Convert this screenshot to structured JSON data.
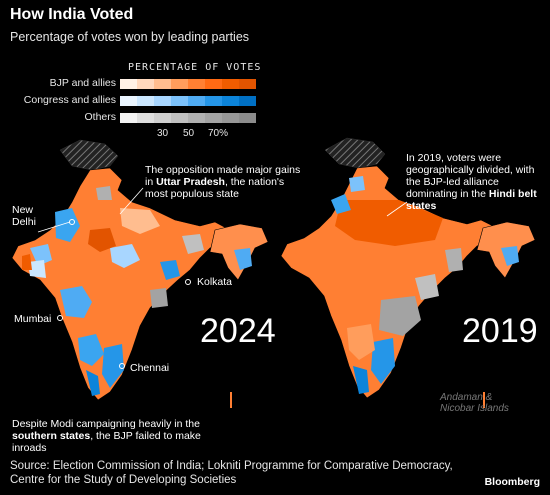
{
  "title": "How India Voted",
  "subtitle": "Percentage of votes won by leading parties",
  "legend": {
    "header": "PERCENTAGE OF VOTES",
    "rows": [
      {
        "label": "BJP and allies",
        "colors": [
          "#fff1e6",
          "#ffd8bd",
          "#ffbd8f",
          "#ff9d5c",
          "#ff8033",
          "#ff6a14",
          "#f05c00",
          "#e25400"
        ]
      },
      {
        "label": "Congress and allies",
        "colors": [
          "#eaf5ff",
          "#cbe7ff",
          "#a8d6ff",
          "#7cc2fb",
          "#4fabf3",
          "#2596e8",
          "#0c84da",
          "#0070c4"
        ]
      },
      {
        "label": "Others",
        "colors": [
          "#f2f2f2",
          "#dedede",
          "#cfcfcf",
          "#c0c0c0",
          "#b0b0b0",
          "#a3a3a3",
          "#979797",
          "#8c8c8c"
        ]
      }
    ],
    "ticks": [
      "30",
      "50",
      "70%"
    ]
  },
  "maps": [
    {
      "year": "2024"
    },
    {
      "year": "2019"
    }
  ],
  "cities": {
    "new_delhi": "New\nDelhi",
    "kolkata": "Kolkata",
    "mumbai": "Mumbai",
    "chennai": "Chennai"
  },
  "annotations": {
    "up_pre": "The opposition made major gains in ",
    "up_bold": "Uttar Pradesh",
    "up_post": ", the nation's most populous state",
    "south_pre": "Despite Modi campaigning heavily in the ",
    "south_bold": "southern states",
    "south_post": ", the BJP failed to make inroads",
    "hindi_pre": "In 2019, voters were geographically divided, with the BJP-led alliance dominating in the ",
    "hindi_bold": "Hindi belt states",
    "islands": "Andaman &\nNicobar Islands"
  },
  "source": "Source: Election Commission of India; Lokniti Programme for Comparative Democracy, Centre for the Study of Developing Societies",
  "brand": "Bloomberg",
  "colors": {
    "bjp": "#ff7f33",
    "congress": "#3aa5f0",
    "others": "#aaaaaa",
    "background": "#000000",
    "disputed": "#555555"
  }
}
